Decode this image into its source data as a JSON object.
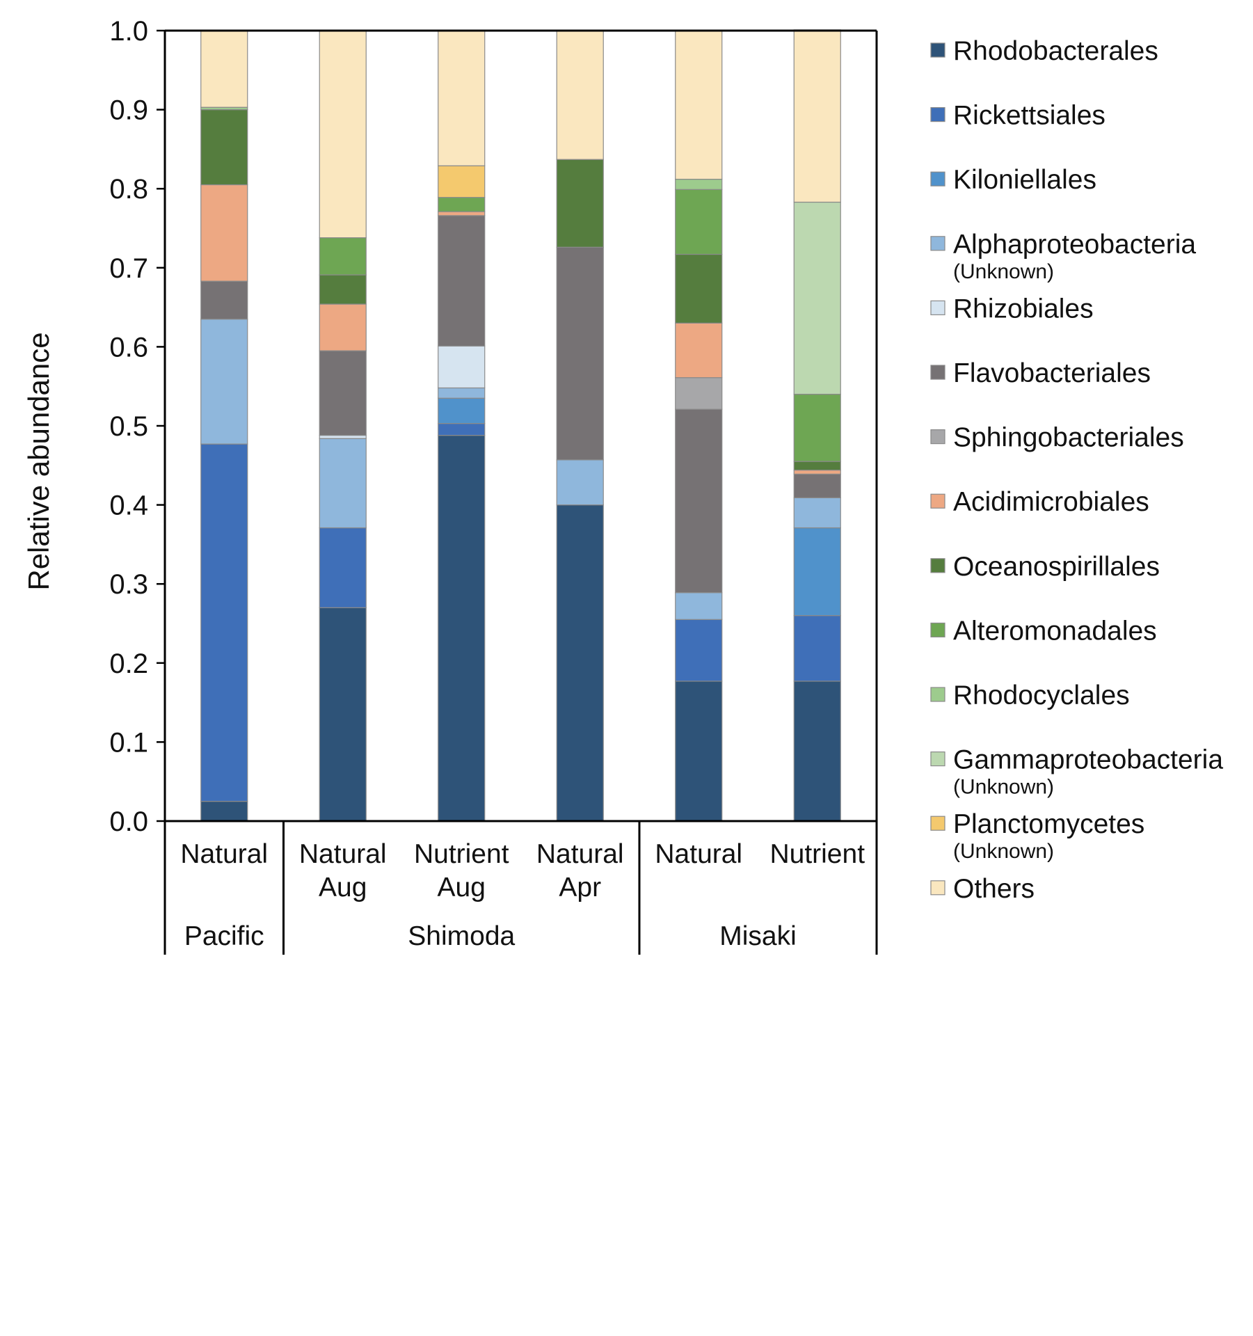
{
  "chart_data": {
    "type": "stacked-bar",
    "ylabel": "Relative abundance",
    "ylim": [
      0.0,
      1.0
    ],
    "yticks": [
      "0.0",
      "0.1",
      "0.2",
      "0.3",
      "0.4",
      "0.5",
      "0.6",
      "0.7",
      "0.8",
      "0.9",
      "1.0"
    ],
    "bars": [
      {
        "label": [
          "Natural"
        ],
        "group": "Pacific"
      },
      {
        "label": [
          "Natural",
          "Aug"
        ],
        "group": "Shimoda"
      },
      {
        "label": [
          "Nutrient",
          "Aug"
        ],
        "group": "Shimoda"
      },
      {
        "label": [
          "Natural",
          "Apr"
        ],
        "group": "Shimoda"
      },
      {
        "label": [
          "Natural"
        ],
        "group": "Misaki"
      },
      {
        "label": [
          "Nutrient"
        ],
        "group": "Misaki"
      }
    ],
    "groups": [
      {
        "name": "Pacific",
        "count": 1
      },
      {
        "name": "Shimoda",
        "count": 3
      },
      {
        "name": "Misaki",
        "count": 2
      }
    ],
    "series": [
      {
        "name": "Rhodobacterales",
        "sub": "",
        "color": "#2e5378",
        "values": [
          0.025,
          0.27,
          0.488,
          0.4,
          0.177,
          0.177
        ]
      },
      {
        "name": "Rickettsiales",
        "sub": "",
        "color": "#3f6fb8",
        "values": [
          0.452,
          0.101,
          0.015,
          0.0,
          0.078,
          0.083
        ]
      },
      {
        "name": "Kiloniellales",
        "sub": "",
        "color": "#5092cb",
        "values": [
          0.0,
          0.0,
          0.032,
          0.0,
          0.0,
          0.111
        ]
      },
      {
        "name": "Alphaproteobacteria",
        "sub": "(Unknown)",
        "color": "#8fb7dc",
        "values": [
          0.158,
          0.113,
          0.013,
          0.057,
          0.034,
          0.038
        ]
      },
      {
        "name": "Rhizobiales",
        "sub": "",
        "color": "#d6e4f0",
        "values": [
          0.0,
          0.004,
          0.053,
          0.0,
          0.0,
          0.0
        ]
      },
      {
        "name": "Flavobacteriales",
        "sub": "",
        "color": "#767274",
        "values": [
          0.048,
          0.107,
          0.165,
          0.269,
          0.232,
          0.03
        ]
      },
      {
        "name": "Sphingobacteriales",
        "sub": "",
        "color": "#a7a7a9",
        "values": [
          0.0,
          0.0,
          0.0,
          0.0,
          0.04,
          0.0
        ]
      },
      {
        "name": "Acidimicrobiales",
        "sub": "",
        "color": "#eda883",
        "values": [
          0.122,
          0.059,
          0.005,
          0.0,
          0.069,
          0.005
        ]
      },
      {
        "name": "Oceanospirillales",
        "sub": "",
        "color": "#557d3e",
        "values": [
          0.095,
          0.037,
          0.0,
          0.111,
          0.087,
          0.011
        ]
      },
      {
        "name": "Alteromonadales",
        "sub": "",
        "color": "#6ea653",
        "values": [
          0.0,
          0.047,
          0.018,
          0.0,
          0.082,
          0.085
        ]
      },
      {
        "name": "Rhodocyclales",
        "sub": "",
        "color": "#9dcb8d",
        "values": [
          0.003,
          0.0,
          0.0,
          0.0,
          0.013,
          0.0
        ]
      },
      {
        "name": "Gammaproteobacteria",
        "sub": "(Unknown)",
        "color": "#bcd8b0",
        "values": [
          0.0,
          0.0,
          0.0,
          0.0,
          0.0,
          0.243
        ]
      },
      {
        "name": "Planctomycetes",
        "sub": "(Unknown)",
        "color": "#f4c96e",
        "values": [
          0.0,
          0.0,
          0.04,
          0.0,
          0.0,
          0.0
        ]
      },
      {
        "name": "Others",
        "sub": "",
        "color": "#fae7bf",
        "values": [
          0.097,
          0.262,
          0.171,
          0.163,
          0.188,
          0.218
        ]
      }
    ]
  }
}
